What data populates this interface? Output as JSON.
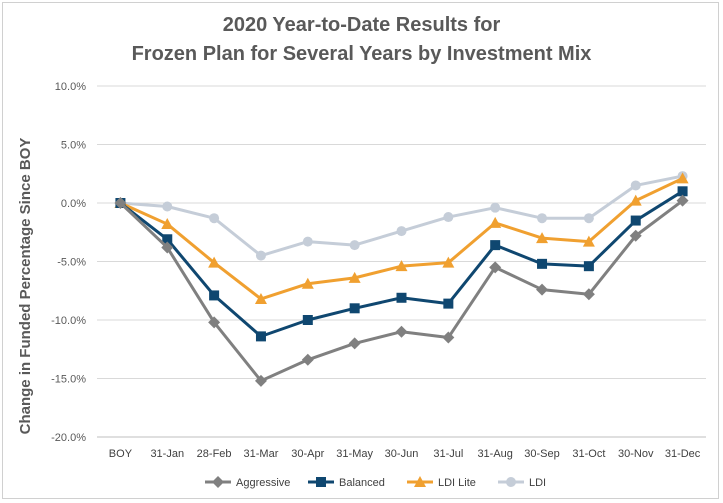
{
  "chart_data": {
    "type": "line",
    "title_line1": "2020 Year-to-Date Results for",
    "title_line2": "Frozen Plan for Several Years by Investment Mix",
    "xlabel": "",
    "ylabel": "Change in Funded Percentage Since BOY",
    "ylim": [
      -20,
      10
    ],
    "yticks": [
      10,
      5,
      0,
      -5,
      -10,
      -15,
      -20
    ],
    "ytick_labels": [
      "10.0%",
      "5.0%",
      "0.0%",
      "-5.0%",
      "-10.0%",
      "-15.0%",
      "-20.0%"
    ],
    "categories": [
      "BOY",
      "31-Jan",
      "28-Feb",
      "31-Mar",
      "30-Apr",
      "31-May",
      "30-Jun",
      "31-Jul",
      "31-Aug",
      "30-Sep",
      "31-Oct",
      "30-Nov",
      "31-Dec"
    ],
    "grid": true,
    "legend_position": "bottom",
    "series": [
      {
        "name": "Aggressive",
        "color": "#808080",
        "marker": "diamond",
        "values": [
          0,
          -3.8,
          -10.2,
          -15.2,
          -13.4,
          -12.0,
          -11.0,
          -11.5,
          -5.5,
          -7.4,
          -7.8,
          -2.8,
          0.2
        ]
      },
      {
        "name": "Balanced",
        "color": "#0f4770",
        "marker": "square",
        "values": [
          0,
          -3.1,
          -7.9,
          -11.4,
          -10.0,
          -9.0,
          -8.1,
          -8.6,
          -3.6,
          -5.2,
          -5.4,
          -1.5,
          1.0
        ]
      },
      {
        "name": "LDI Lite",
        "color": "#f0a030",
        "marker": "triangle",
        "values": [
          0,
          -1.8,
          -5.1,
          -8.2,
          -6.9,
          -6.4,
          -5.4,
          -5.1,
          -1.7,
          -3.0,
          -3.3,
          0.2,
          2.1
        ]
      },
      {
        "name": "LDI",
        "color": "#c5cdd8",
        "marker": "circle",
        "values": [
          0,
          -0.3,
          -1.3,
          -4.5,
          -3.3,
          -3.6,
          -2.4,
          -1.2,
          -0.4,
          -1.3,
          -1.3,
          1.5,
          2.3
        ]
      }
    ]
  }
}
